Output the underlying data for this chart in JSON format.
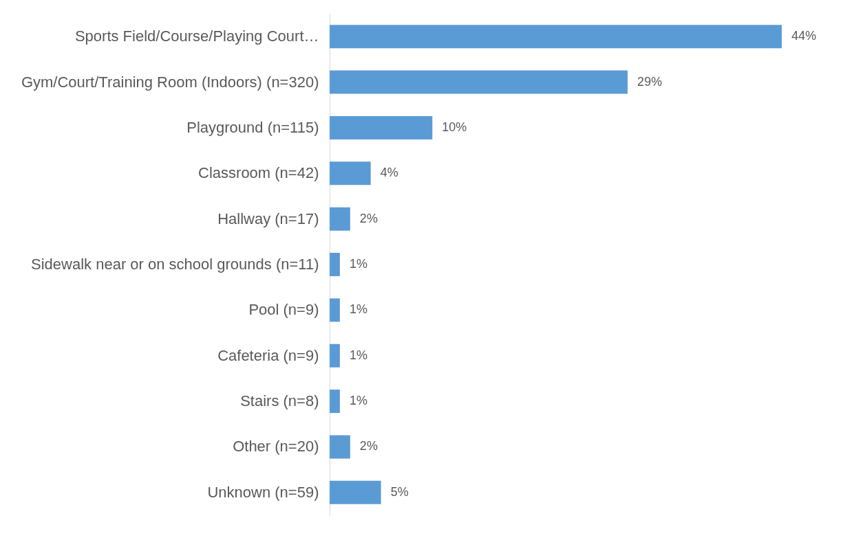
{
  "chart_data": {
    "type": "bar",
    "orientation": "horizontal",
    "color": "#5b9bd5",
    "categories": [
      "Sports Field/Course/Playing Court…",
      "Gym/Court/Training Room (Indoors) (n=320)",
      "Playground (n=115)",
      "Classroom (n=42)",
      "Hallway (n=17)",
      "Sidewalk near or on school grounds (n=11)",
      "Pool (n=9)",
      "Cafeteria (n=9)",
      "Stairs (n=8)",
      "Other (n=20)",
      "Unknown (n=59)"
    ],
    "values": [
      44,
      29,
      10,
      4,
      2,
      1,
      1,
      1,
      1,
      2,
      5
    ],
    "value_labels": [
      "44%",
      "29%",
      "10%",
      "4%",
      "2%",
      "1%",
      "1%",
      "1%",
      "1%",
      "2%",
      "5%"
    ]
  }
}
